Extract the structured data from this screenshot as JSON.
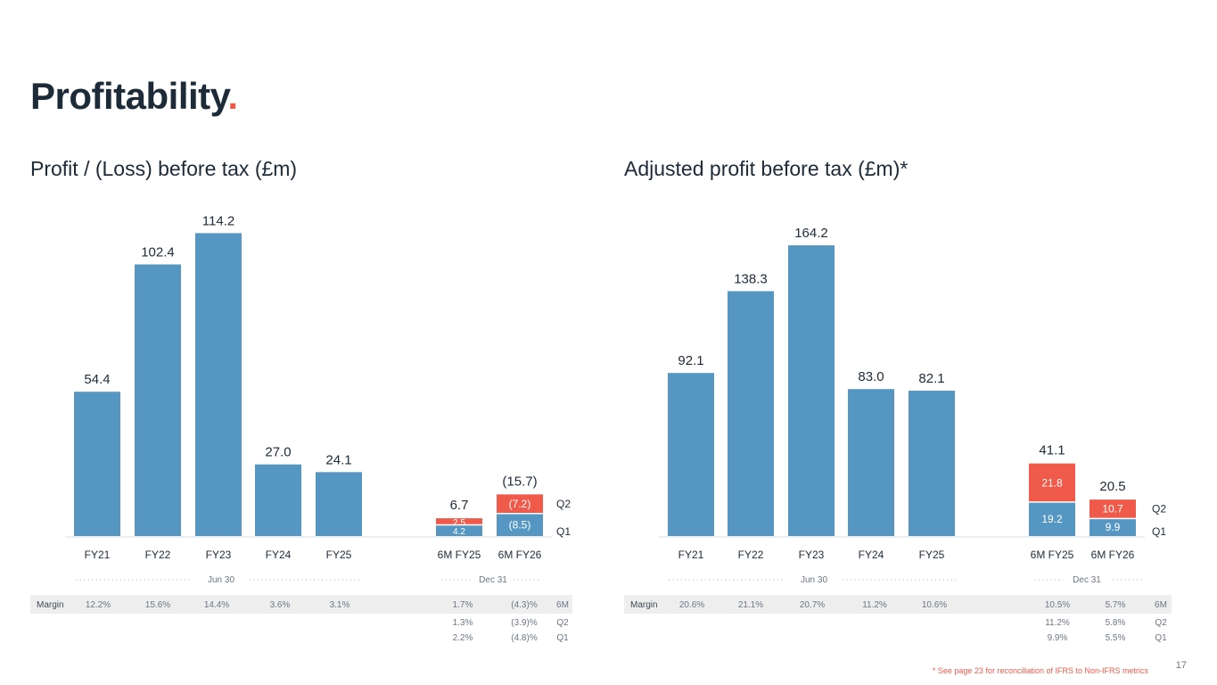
{
  "page": {
    "title": "Profitability",
    "title_dot": ".",
    "footnote": "* See page 23 for reconciliation of IFRS to Non-IFRS metrics",
    "page_number": "17"
  },
  "colors": {
    "blue": "#5597c2",
    "red": "#f05a4a",
    "text": "#1d2b38",
    "grey": "#6b7785",
    "band": "#eeeeee"
  },
  "chart_data": [
    {
      "type": "bar",
      "title": "Profit / (Loss) before tax (£m)",
      "categories": [
        "FY21",
        "FY22",
        "FY23",
        "FY24",
        "FY25",
        "6M FY25",
        "6M FY26"
      ],
      "totals": [
        54.4,
        102.4,
        114.2,
        27.0,
        24.1,
        6.7,
        -15.7
      ],
      "total_labels": [
        "54.4",
        "102.4",
        "114.2",
        "27.0",
        "24.1",
        "6.7",
        "(15.7)"
      ],
      "q1_values": [
        null,
        null,
        null,
        null,
        null,
        4.2,
        -8.5
      ],
      "q1_labels": [
        "",
        "",
        "",
        "",
        "",
        "4.2",
        "(8.5)"
      ],
      "q2_values": [
        null,
        null,
        null,
        null,
        null,
        2.5,
        -7.2
      ],
      "q2_labels": [
        "",
        "",
        "",
        "",
        "",
        "2.5",
        "(7.2)"
      ],
      "legend": {
        "q2": "Q2",
        "q1": "Q1"
      },
      "period_labels": [
        "Jun 30",
        "Dec 31"
      ],
      "margin_rows": [
        {
          "label": "Margin",
          "values": [
            "12.2%",
            "15.6%",
            "14.4%",
            "3.6%",
            "3.1%",
            "1.7%",
            "(4.3)%"
          ],
          "tag": "6M"
        },
        {
          "label": "",
          "values": [
            "",
            "",
            "",
            "",
            "",
            "1.3%",
            "(3.9)%"
          ],
          "tag": "Q2"
        },
        {
          "label": "",
          "values": [
            "",
            "",
            "",
            "",
            "",
            "2.2%",
            "(4.8)%"
          ],
          "tag": "Q1"
        }
      ]
    },
    {
      "type": "bar",
      "title": "Adjusted profit before tax (£m)*",
      "categories": [
        "FY21",
        "FY22",
        "FY23",
        "FY24",
        "FY25",
        "6M FY25",
        "6M FY26"
      ],
      "totals": [
        92.1,
        138.3,
        164.2,
        83.0,
        82.1,
        41.1,
        20.5
      ],
      "total_labels": [
        "92.1",
        "138.3",
        "164.2",
        "83.0",
        "82.1",
        "41.1",
        "20.5"
      ],
      "q1_values": [
        null,
        null,
        null,
        null,
        null,
        19.2,
        9.9
      ],
      "q1_labels": [
        "",
        "",
        "",
        "",
        "",
        "19.2",
        "9.9"
      ],
      "q2_values": [
        null,
        null,
        null,
        null,
        null,
        21.8,
        10.7
      ],
      "q2_labels": [
        "",
        "",
        "",
        "",
        "",
        "21.8",
        "10.7"
      ],
      "legend": {
        "q2": "Q2",
        "q1": "Q1"
      },
      "period_labels": [
        "Jun 30",
        "Dec 31"
      ],
      "margin_rows": [
        {
          "label": "Margin",
          "values": [
            "20.6%",
            "21.1%",
            "20.7%",
            "11.2%",
            "10.6%",
            "10.5%",
            "5.7%"
          ],
          "tag": "6M"
        },
        {
          "label": "",
          "values": [
            "",
            "",
            "",
            "",
            "",
            "11.2%",
            "5.8%"
          ],
          "tag": "Q2"
        },
        {
          "label": "",
          "values": [
            "",
            "",
            "",
            "",
            "",
            "9.9%",
            "5.5%"
          ],
          "tag": "Q1"
        }
      ]
    }
  ]
}
